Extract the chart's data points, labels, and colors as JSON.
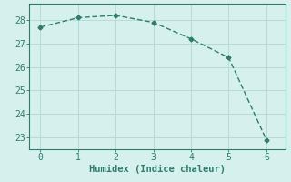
{
  "x": [
    0,
    1,
    2,
    3,
    4,
    5,
    6
  ],
  "y": [
    27.7,
    28.1,
    28.2,
    27.9,
    27.2,
    26.4,
    22.9
  ],
  "line_color": "#2d7c6e",
  "marker": "D",
  "marker_size": 2.5,
  "xlabel": "Humidex (Indice chaleur)",
  "xlim": [
    -0.3,
    6.5
  ],
  "ylim": [
    22.5,
    28.7
  ],
  "xticks": [
    0,
    1,
    2,
    3,
    4,
    5,
    6
  ],
  "yticks": [
    23,
    24,
    25,
    26,
    27,
    28
  ],
  "background_color": "#d6f0ee",
  "grid_color": "#b8dbd8",
  "xlabel_fontsize": 7.5,
  "tick_fontsize": 7,
  "font_family": "monospace"
}
